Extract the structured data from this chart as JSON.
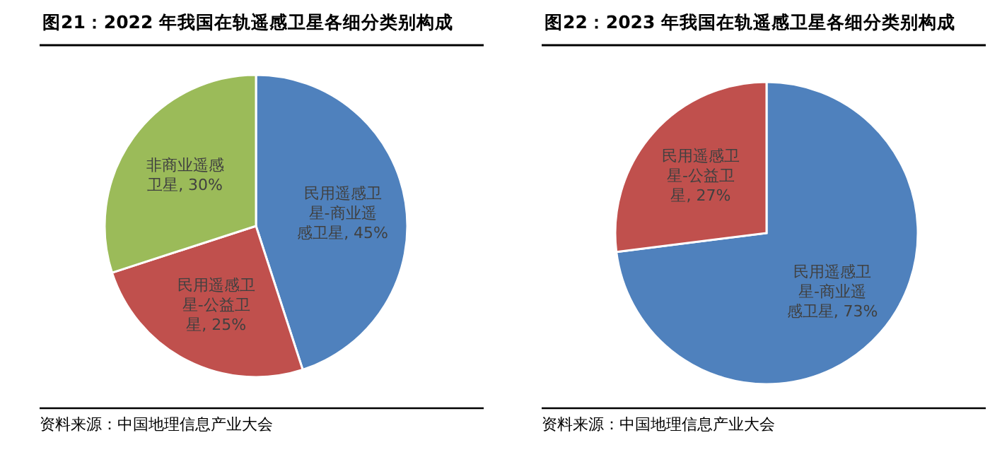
{
  "chart_data": [
    {
      "type": "pie",
      "title": "图21：2022 年我国在轨遥感卫星各细分类别构成",
      "categories": [
        "民用遥感卫星-商业遥感卫星",
        "民用遥感卫星-公益卫星",
        "非商业遥感卫星"
      ],
      "values": [
        45,
        25,
        30
      ],
      "value_labels": [
        "45%",
        "25%",
        "30%"
      ],
      "colors": [
        "#4f81bd",
        "#c0504d",
        "#9bbb59"
      ],
      "annotations": [
        "资料来源：中国地理信息产业大会"
      ]
    },
    {
      "type": "pie",
      "title": "图22：2023 年我国在轨遥感卫星各细分类别构成",
      "categories": [
        "民用遥感卫星-商业遥感卫星",
        "民用遥感卫星-公益卫星"
      ],
      "values": [
        73,
        27
      ],
      "value_labels": [
        "73%",
        "27%"
      ],
      "colors": [
        "#4f81bd",
        "#c0504d"
      ],
      "annotations": [
        "资料来源：中国地理信息产业大会"
      ]
    }
  ]
}
